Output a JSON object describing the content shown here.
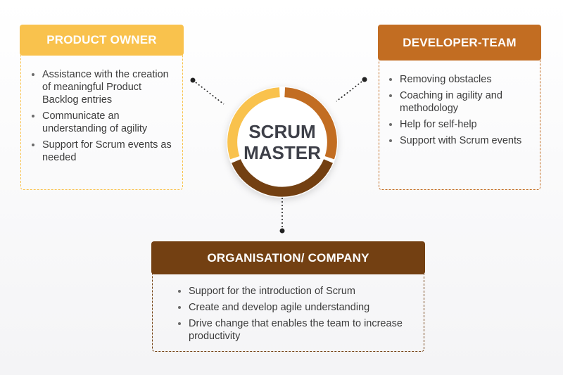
{
  "center": {
    "line1": "SCRUM",
    "line2": "MASTER"
  },
  "product_owner": {
    "title": "PRODUCT OWNER",
    "items": [
      "Assistance with the creation of meaningful Product Backlog entries",
      "Communicate an understanding of agility",
      "Support for Scrum events as needed"
    ]
  },
  "developer_team": {
    "title": "DEVELOPER-TEAM",
    "items": [
      "Removing obstacles",
      "Coaching in agility and methodology",
      "Help for self-help",
      "Support with Scrum events"
    ]
  },
  "organisation": {
    "title": "ORGANISATION/ COMPANY",
    "items": [
      "Support for the introduction of Scrum",
      "Create and develop agile understanding",
      "Drive change that enables the team to increase productivity"
    ]
  },
  "colors": {
    "product_owner": "#f9c24d",
    "developer_team": "#c26d22",
    "organisation": "#734012",
    "center_text": "#3d3f48"
  }
}
